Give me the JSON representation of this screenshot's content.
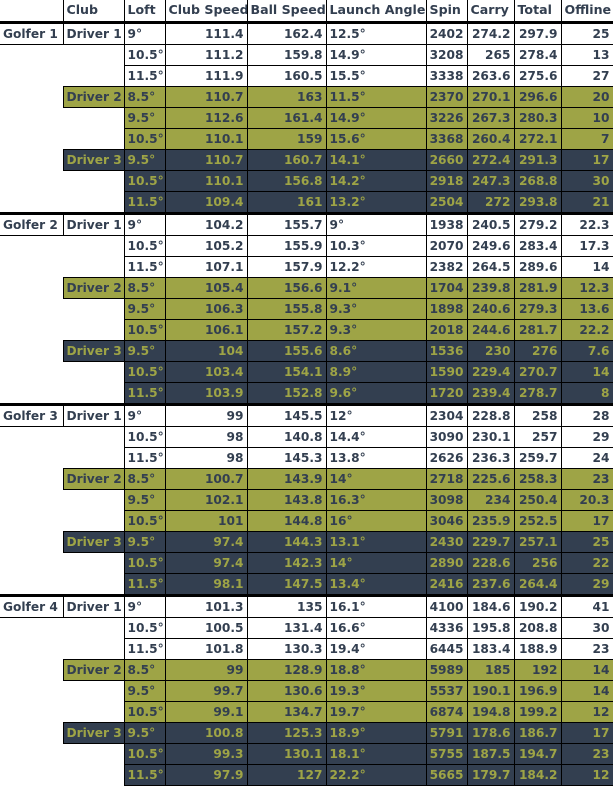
{
  "table": {
    "headers": [
      "",
      "Club",
      "Loft",
      "Club Speed",
      "Ball Speed",
      "Launch Angle",
      "Spin",
      "Carry",
      "Total",
      "Offline"
    ],
    "colors": {
      "driver1_bg": "#ffffff",
      "driver1_text": "#333f50",
      "driver2_bg": "#9ea446",
      "driver2_text": "#333f50",
      "driver3_bg": "#333f50",
      "driver3_text": "#9ea446"
    },
    "golfers": [
      {
        "name": "Golfer 1",
        "drivers": [
          {
            "name": "Driver 1",
            "rows": [
              {
                "loft": "9°",
                "club_speed": "111.4",
                "ball_speed": "162.4",
                "launch_angle": "12.5°",
                "spin": "2402",
                "carry": "274.2",
                "total": "297.9",
                "offline": "25"
              },
              {
                "loft": "10.5°",
                "club_speed": "111.2",
                "ball_speed": "159.8",
                "launch_angle": "14.9°",
                "spin": "3208",
                "carry": "265",
                "total": "278.4",
                "offline": "13"
              },
              {
                "loft": "11.5°",
                "club_speed": "111.9",
                "ball_speed": "160.5",
                "launch_angle": "15.5°",
                "spin": "3338",
                "carry": "263.6",
                "total": "275.6",
                "offline": "27"
              }
            ]
          },
          {
            "name": "Driver 2",
            "rows": [
              {
                "loft": "8.5°",
                "club_speed": "110.7",
                "ball_speed": "163",
                "launch_angle": "11.5°",
                "spin": "2370",
                "carry": "270.1",
                "total": "296.6",
                "offline": "20"
              },
              {
                "loft": "9.5°",
                "club_speed": "112.6",
                "ball_speed": "161.4",
                "launch_angle": "14.9°",
                "spin": "3226",
                "carry": "267.3",
                "total": "280.3",
                "offline": "10"
              },
              {
                "loft": "10.5°",
                "club_speed": "110.1",
                "ball_speed": "159",
                "launch_angle": "15.6°",
                "spin": "3368",
                "carry": "260.4",
                "total": "272.1",
                "offline": "7"
              }
            ]
          },
          {
            "name": "Driver 3",
            "rows": [
              {
                "loft": "9.5°",
                "club_speed": "110.7",
                "ball_speed": "160.7",
                "launch_angle": "14.1°",
                "spin": "2660",
                "carry": "272.4",
                "total": "291.3",
                "offline": "17"
              },
              {
                "loft": "10.5°",
                "club_speed": "110.1",
                "ball_speed": "156.8",
                "launch_angle": "14.2°",
                "spin": "2918",
                "carry": "247.3",
                "total": "268.8",
                "offline": "30"
              },
              {
                "loft": "11.5°",
                "club_speed": "109.4",
                "ball_speed": "161",
                "launch_angle": "13.2°",
                "spin": "2504",
                "carry": "272",
                "total": "293.8",
                "offline": "21"
              }
            ]
          }
        ]
      },
      {
        "name": "Golfer 2",
        "drivers": [
          {
            "name": "Driver 1",
            "rows": [
              {
                "loft": "9°",
                "club_speed": "104.2",
                "ball_speed": "155.7",
                "launch_angle": "9°",
                "spin": "1938",
                "carry": "240.5",
                "total": "279.2",
                "offline": "22.3"
              },
              {
                "loft": "10.5°",
                "club_speed": "105.2",
                "ball_speed": "155.9",
                "launch_angle": "10.3°",
                "spin": "2070",
                "carry": "249.6",
                "total": "283.4",
                "offline": "17.3"
              },
              {
                "loft": "11.5°",
                "club_speed": "107.1",
                "ball_speed": "157.9",
                "launch_angle": "12.2°",
                "spin": "2382",
                "carry": "264.5",
                "total": "289.6",
                "offline": "14"
              }
            ]
          },
          {
            "name": "Driver 2",
            "rows": [
              {
                "loft": "8.5°",
                "club_speed": "105.4",
                "ball_speed": "156.6",
                "launch_angle": "9.1°",
                "spin": "1704",
                "carry": "239.8",
                "total": "281.9",
                "offline": "12.3"
              },
              {
                "loft": "9.5°",
                "club_speed": "106.3",
                "ball_speed": "155.8",
                "launch_angle": "9.3°",
                "spin": "1898",
                "carry": "240.6",
                "total": "279.3",
                "offline": "13.6"
              },
              {
                "loft": "10.5°",
                "club_speed": "106.1",
                "ball_speed": "157.2",
                "launch_angle": "9.3°",
                "spin": "2018",
                "carry": "244.6",
                "total": "281.7",
                "offline": "22.2"
              }
            ]
          },
          {
            "name": "Driver 3",
            "rows": [
              {
                "loft": "9.5°",
                "club_speed": "104",
                "ball_speed": "155.6",
                "launch_angle": "8.6°",
                "spin": "1536",
                "carry": "230",
                "total": "276",
                "offline": "7.6"
              },
              {
                "loft": "10.5°",
                "club_speed": "103.4",
                "ball_speed": "154.1",
                "launch_angle": "8.9°",
                "spin": "1590",
                "carry": "229.4",
                "total": "270.7",
                "offline": "14"
              },
              {
                "loft": "11.5°",
                "club_speed": "103.9",
                "ball_speed": "152.8",
                "launch_angle": "9.6°",
                "spin": "1720",
                "carry": "239.4",
                "total": "278.7",
                "offline": "8"
              }
            ]
          }
        ]
      },
      {
        "name": "Golfer 3",
        "drivers": [
          {
            "name": "Driver 1",
            "rows": [
              {
                "loft": "9°",
                "club_speed": "99",
                "ball_speed": "145.5",
                "launch_angle": "12°",
                "spin": "2304",
                "carry": "228.8",
                "total": "258",
                "offline": "28"
              },
              {
                "loft": "10.5°",
                "club_speed": "98",
                "ball_speed": "140.8",
                "launch_angle": "14.4°",
                "spin": "3090",
                "carry": "230.1",
                "total": "257",
                "offline": "29"
              },
              {
                "loft": "11.5°",
                "club_speed": "98",
                "ball_speed": "145.3",
                "launch_angle": "13.8°",
                "spin": "2626",
                "carry": "236.3",
                "total": "259.7",
                "offline": "24"
              }
            ]
          },
          {
            "name": "Driver 2",
            "rows": [
              {
                "loft": "8.5°",
                "club_speed": "100.7",
                "ball_speed": "143.9",
                "launch_angle": "14°",
                "spin": "2718",
                "carry": "225.6",
                "total": "258.3",
                "offline": "23"
              },
              {
                "loft": "9.5°",
                "club_speed": "102.1",
                "ball_speed": "143.8",
                "launch_angle": "16.3°",
                "spin": "3098",
                "carry": "234",
                "total": "250.4",
                "offline": "20.3"
              },
              {
                "loft": "10.5°",
                "club_speed": "101",
                "ball_speed": "144.8",
                "launch_angle": "16°",
                "spin": "3046",
                "carry": "235.9",
                "total": "252.5",
                "offline": "17"
              }
            ]
          },
          {
            "name": "Driver 3",
            "rows": [
              {
                "loft": "9.5°",
                "club_speed": "97.4",
                "ball_speed": "144.3",
                "launch_angle": "13.1°",
                "spin": "2430",
                "carry": "229.7",
                "total": "257.1",
                "offline": "25"
              },
              {
                "loft": "10.5°",
                "club_speed": "97.4",
                "ball_speed": "142.3",
                "launch_angle": "14°",
                "spin": "2890",
                "carry": "228.6",
                "total": "256",
                "offline": "22"
              },
              {
                "loft": "11.5°",
                "club_speed": "98.1",
                "ball_speed": "147.5",
                "launch_angle": "13.4°",
                "spin": "2416",
                "carry": "237.6",
                "total": "264.4",
                "offline": "29"
              }
            ]
          }
        ]
      },
      {
        "name": "Golfer 4",
        "drivers": [
          {
            "name": "Driver 1",
            "rows": [
              {
                "loft": "9°",
                "club_speed": "101.3",
                "ball_speed": "135",
                "launch_angle": "16.1°",
                "spin": "4100",
                "carry": "184.6",
                "total": "190.2",
                "offline": "41"
              },
              {
                "loft": "10.5°",
                "club_speed": "100.5",
                "ball_speed": "131.4",
                "launch_angle": "16.6°",
                "spin": "4336",
                "carry": "195.8",
                "total": "208.8",
                "offline": "30"
              },
              {
                "loft": "11.5°",
                "club_speed": "101.8",
                "ball_speed": "130.3",
                "launch_angle": "19.4°",
                "spin": "6445",
                "carry": "183.4",
                "total": "188.9",
                "offline": "23"
              }
            ]
          },
          {
            "name": "Driver 2",
            "rows": [
              {
                "loft": "8.5°",
                "club_speed": "99",
                "ball_speed": "128.9",
                "launch_angle": "18.8°",
                "spin": "5989",
                "carry": "185",
                "total": "192",
                "offline": "14"
              },
              {
                "loft": "9.5°",
                "club_speed": "99.7",
                "ball_speed": "130.6",
                "launch_angle": "19.3°",
                "spin": "5537",
                "carry": "190.1",
                "total": "196.9",
                "offline": "14"
              },
              {
                "loft": "10.5°",
                "club_speed": "99.1",
                "ball_speed": "134.7",
                "launch_angle": "19.7°",
                "spin": "6874",
                "carry": "194.8",
                "total": "199.2",
                "offline": "12"
              }
            ]
          },
          {
            "name": "Driver 3",
            "rows": [
              {
                "loft": "9.5°",
                "club_speed": "100.8",
                "ball_speed": "125.3",
                "launch_angle": "18.9°",
                "spin": "5791",
                "carry": "178.6",
                "total": "186.7",
                "offline": "17"
              },
              {
                "loft": "10.5°",
                "club_speed": "99.3",
                "ball_speed": "130.1",
                "launch_angle": "18.1°",
                "spin": "5755",
                "carry": "187.5",
                "total": "194.7",
                "offline": "23"
              },
              {
                "loft": "11.5°",
                "club_speed": "97.9",
                "ball_speed": "127",
                "launch_angle": "22.2°",
                "spin": "5665",
                "carry": "179.7",
                "total": "184.2",
                "offline": "12"
              }
            ]
          }
        ]
      }
    ]
  }
}
